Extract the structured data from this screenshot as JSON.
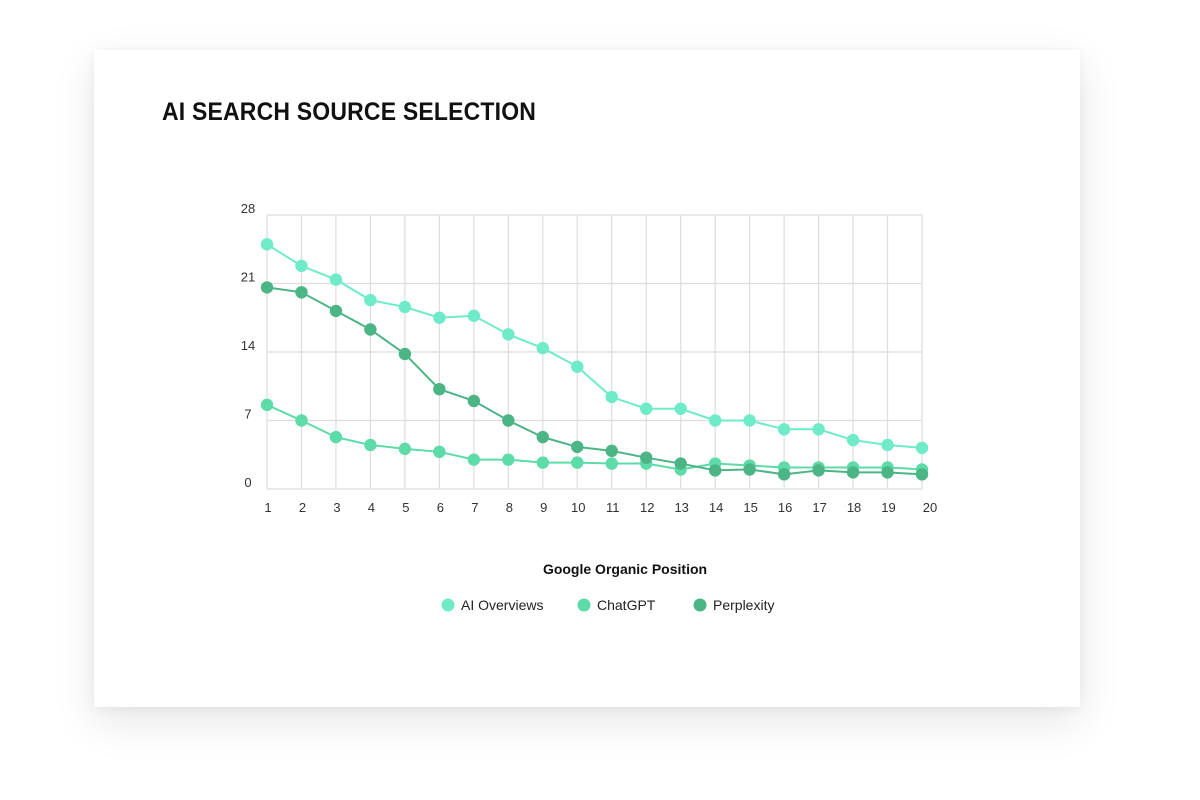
{
  "chart_data": {
    "type": "line",
    "title": "AI SEARCH SOURCE SELECTION",
    "xlabel": "Google Organic Position",
    "ylabel": "",
    "x": [
      1,
      2,
      3,
      4,
      5,
      6,
      7,
      8,
      9,
      10,
      11,
      12,
      13,
      14,
      15,
      16,
      17,
      18,
      19,
      20
    ],
    "ylim": [
      0,
      28
    ],
    "yticks": [
      0,
      7,
      14,
      21,
      28
    ],
    "grid": true,
    "legend_position": "bottom",
    "series": [
      {
        "name": "AI Overviews",
        "color": "#6FEBC9",
        "values": [
          25.0,
          22.8,
          21.4,
          19.3,
          18.6,
          17.5,
          17.7,
          15.8,
          14.4,
          12.5,
          9.4,
          8.2,
          8.2,
          7.0,
          7.0,
          6.1,
          6.1,
          5.0,
          4.5,
          4.2
        ]
      },
      {
        "name": "ChatGPT",
        "color": "#5DDBA8",
        "values": [
          8.6,
          7.0,
          5.3,
          4.5,
          4.1,
          3.8,
          3.0,
          3.0,
          2.7,
          2.7,
          2.6,
          2.6,
          2.0,
          2.6,
          2.4,
          2.2,
          2.2,
          2.2,
          2.2,
          2.0
        ]
      },
      {
        "name": "Perplexity",
        "color": "#4CB586",
        "values": [
          20.6,
          20.1,
          18.2,
          16.3,
          13.8,
          10.2,
          9.0,
          7.0,
          5.3,
          4.3,
          3.9,
          3.2,
          2.6,
          1.9,
          2.0,
          1.5,
          1.9,
          1.7,
          1.7,
          1.5
        ]
      }
    ]
  }
}
